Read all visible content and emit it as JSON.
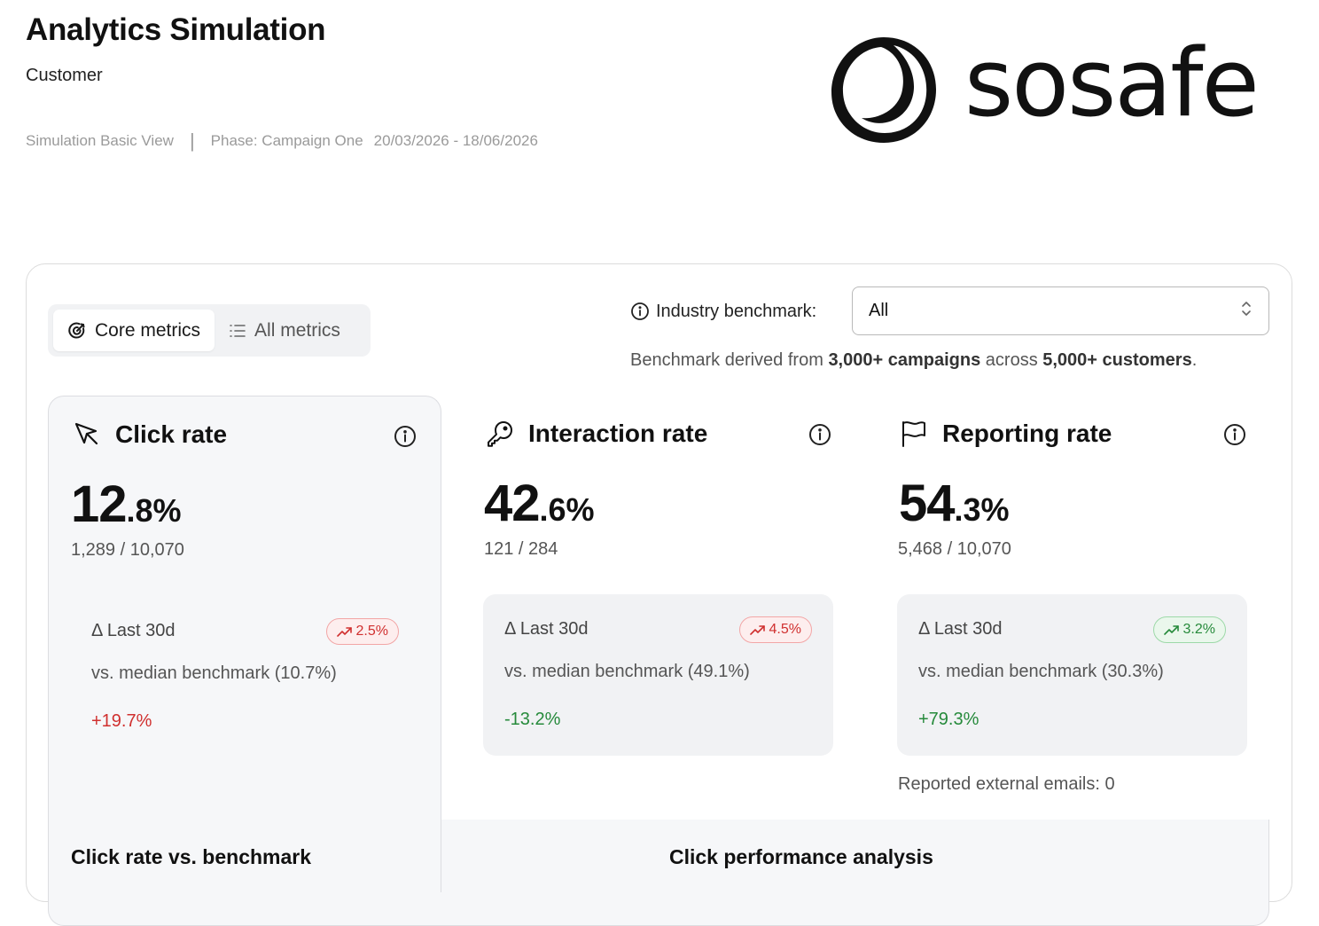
{
  "header": {
    "title": "Analytics Simulation",
    "subtitle": "Customer",
    "view": "Simulation Basic View",
    "separator": "|",
    "phase": "Phase: Campaign One",
    "date_range": "20/03/2026 - 18/06/2026"
  },
  "logo": {
    "text": "sosafe"
  },
  "toggles": [
    {
      "label": "Core metrics",
      "icon": "target-icon",
      "active": true
    },
    {
      "label": "All metrics",
      "icon": "list-icon",
      "active": false
    }
  ],
  "benchmark": {
    "label": "Industry benchmark:",
    "selected": "All",
    "note_prefix": "Benchmark derived from",
    "note_campaigns": "3,000+ campaigns",
    "note_middle": "across",
    "note_customers": "5,000+ customers",
    "note_suffix": "."
  },
  "metrics": [
    {
      "title": "Click rate",
      "icon": "cursor-icon",
      "value_int": "12",
      "value_dec": ".8%",
      "ratio": "1,289 / 10,070",
      "delta_label": "Δ Last 30d",
      "trend": "2.5%",
      "trend_color": "#d0302f",
      "vs_label": "vs. median benchmark (10.7%)",
      "diff": "+19.7%",
      "diff_color": "#d0302f"
    },
    {
      "title": "Interaction rate",
      "icon": "key-icon",
      "value_int": "42",
      "value_dec": ".6%",
      "ratio": "121 / 284",
      "delta_label": "Δ Last 30d",
      "trend": "4.5%",
      "trend_color": "#d0302f",
      "vs_label": "vs. median benchmark (49.1%)",
      "diff": "-13.2%",
      "diff_color": "#268a3b"
    },
    {
      "title": "Reporting rate",
      "icon": "flag-icon",
      "value_int": "54",
      "value_dec": ".3%",
      "ratio": "5,468 / 10,070",
      "delta_label": "Δ Last 30d",
      "trend": "3.2%",
      "trend_color": "#268a3b",
      "vs_label": "vs. median benchmark (30.3%)",
      "diff": "+79.3%",
      "diff_color": "#268a3b"
    }
  ],
  "reported_external": "Reported external emails: 0",
  "sections": {
    "left": "Click rate vs. benchmark",
    "right": "Click performance analysis"
  }
}
